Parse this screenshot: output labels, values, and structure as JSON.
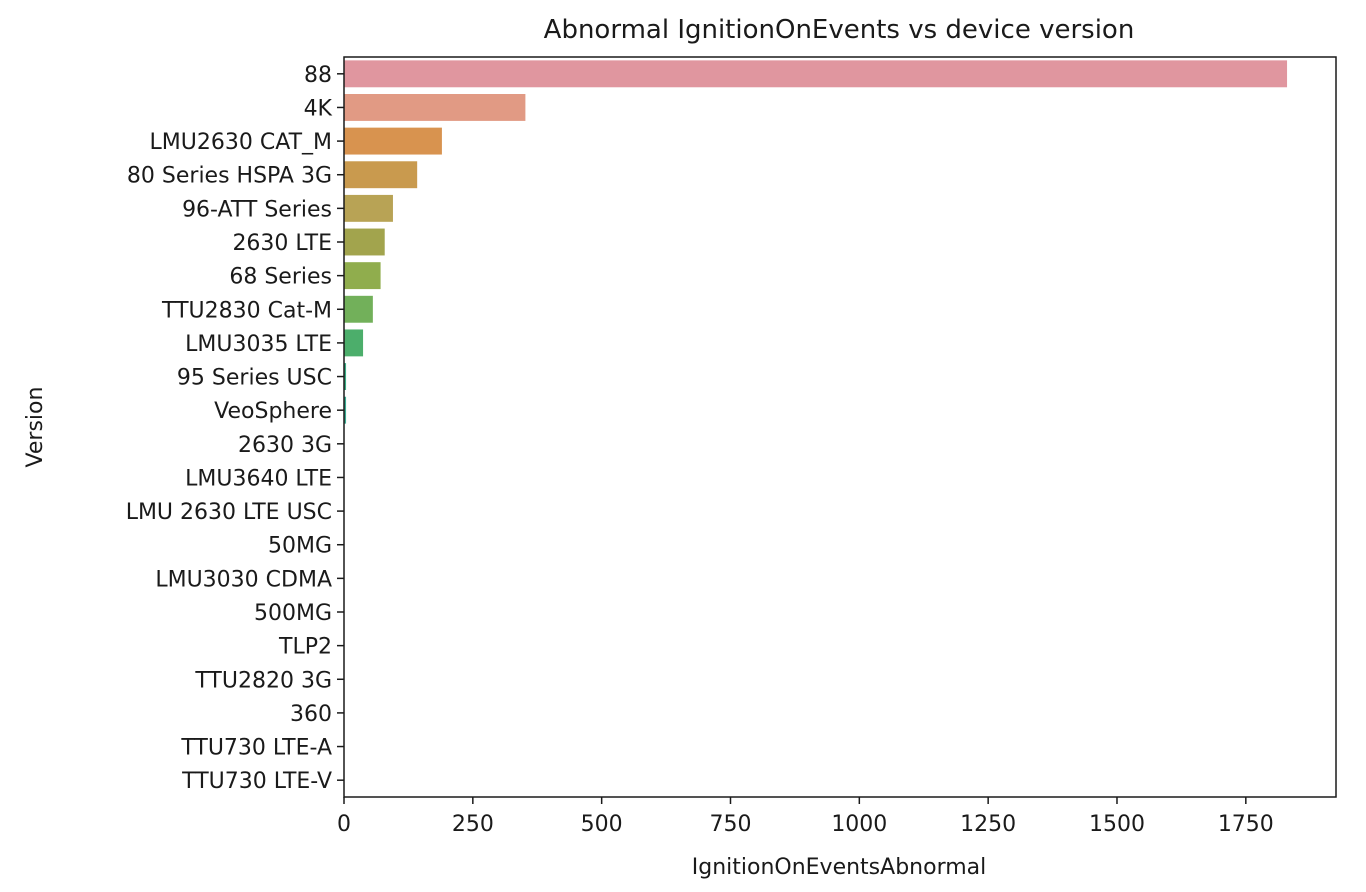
{
  "chart_data": {
    "type": "bar",
    "orientation": "horizontal",
    "title": "Abnormal IgnitionOnEvents vs device version",
    "xlabel": "IgnitionOnEventsAbnormal",
    "ylabel": "Version",
    "xlim": [
      0,
      1925
    ],
    "xticks": [
      0,
      250,
      500,
      750,
      1000,
      1250,
      1500,
      1750
    ],
    "grid": false,
    "categories": [
      "88",
      "4K",
      "LMU2630 CAT_M",
      "80 Series HSPA 3G",
      "96-ATT Series",
      "2630 LTE",
      "68 Series",
      "TTU2830 Cat-M",
      "LMU3035 LTE",
      "95 Series USC",
      "VeoSphere",
      "2630 3G",
      "LMU3640 LTE",
      "LMU 2630 LTE USC",
      "50MG",
      "LMU3030 CDMA",
      "500MG",
      "TLP2",
      "TTU2820 3G",
      "360",
      "TTU730 LTE-A",
      "TTU730 LTE-V"
    ],
    "values": [
      1830,
      352,
      190,
      142,
      95,
      79,
      71,
      56,
      37,
      4,
      4,
      0,
      0,
      0,
      0,
      0,
      0,
      0,
      0,
      0,
      0,
      0
    ],
    "colors": [
      "#e0969f",
      "#e19a84",
      "#d8934f",
      "#c99a4e",
      "#b8a355",
      "#a2a44d",
      "#90ad4d",
      "#72b05a",
      "#4cae6b",
      "#3aad84",
      "#39ab91",
      "#3aaa9a",
      "#3ba9a5",
      "#3ca7b2",
      "#3fa3c0",
      "#5ea0d0",
      "#869ad7",
      "#a491d9",
      "#bd88d6",
      "#d480cf",
      "#e083bf",
      "#e58cad"
    ]
  }
}
